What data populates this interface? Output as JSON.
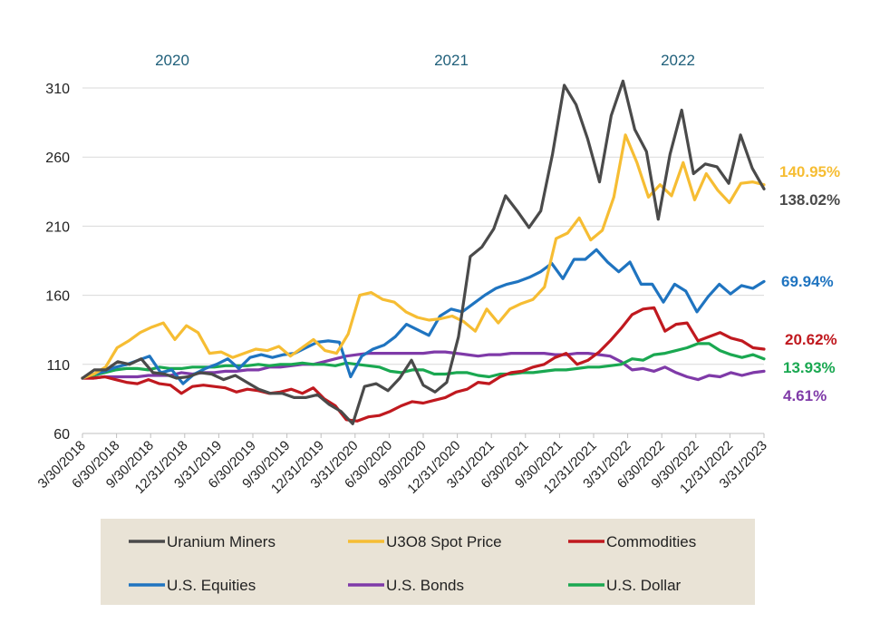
{
  "chart_data": {
    "type": "line",
    "title": "",
    "xlabel": "",
    "ylabel": "",
    "ylim": [
      60,
      320
    ],
    "yticks": [
      60,
      110,
      160,
      210,
      260,
      310
    ],
    "grid": "horizontal",
    "legend_position": "bottom",
    "year_annotations": [
      "2020",
      "2021",
      "2022"
    ],
    "x_tick_labels": [
      "3/30/2018",
      "6/30/2018",
      "9/30/2018",
      "12/31/2018",
      "3/31/2019",
      "6/30/2019",
      "9/30/2019",
      "12/31/2019",
      "3/31/2020",
      "6/30/2020",
      "9/30/2020",
      "12/31/2020",
      "3/31/2021",
      "6/30/2021",
      "9/30/2021",
      "12/31/2021",
      "3/31/2022",
      "6/30/2022",
      "9/30/2022",
      "12/31/2022",
      "3/31/2023"
    ],
    "series": [
      {
        "name": "Uranium Miners",
        "color": "#4a4a4a",
        "end_label": "138.02%",
        "values": [
          100,
          106,
          106,
          112,
          110,
          114,
          104,
          103,
          100,
          101,
          104,
          103,
          99,
          102,
          97,
          92,
          89,
          89,
          86,
          86,
          88,
          81,
          76,
          67,
          94,
          96,
          91,
          100,
          113,
          95,
          90,
          97,
          130,
          188,
          195,
          208,
          232,
          221,
          209,
          221,
          262,
          312,
          298,
          273,
          242,
          290,
          315,
          280,
          264,
          215,
          262,
          294,
          248,
          255,
          253,
          241,
          276,
          252,
          237
        ]
      },
      {
        "name": "U3O8 Spot Price",
        "color": "#f6bd33",
        "end_label": "140.95%",
        "values": [
          100,
          103,
          108,
          122,
          127,
          133,
          137,
          140,
          128,
          138,
          133,
          118,
          119,
          115,
          118,
          121,
          120,
          123,
          116,
          122,
          128,
          120,
          118,
          132,
          160,
          162,
          157,
          155,
          148,
          144,
          142,
          143,
          145,
          141,
          134,
          150,
          140,
          150,
          154,
          157,
          166,
          201,
          205,
          216,
          200,
          207,
          231,
          276,
          256,
          231,
          240,
          232,
          256,
          229,
          248,
          236,
          227,
          241,
          242,
          240
        ]
      },
      {
        "name": "Commodities",
        "color": "#c0191f",
        "end_label": "20.62%",
        "values": [
          100,
          100,
          101,
          99,
          97,
          96,
          99,
          96,
          95,
          89,
          94,
          95,
          94,
          93,
          90,
          92,
          91,
          89,
          90,
          92,
          89,
          93,
          85,
          80,
          70,
          69,
          72,
          73,
          76,
          80,
          83,
          82,
          84,
          86,
          90,
          92,
          97,
          96,
          101,
          104,
          105,
          108,
          110,
          115,
          118,
          110,
          113,
          119,
          127,
          136,
          146,
          150,
          151,
          134,
          139,
          140,
          127,
          130,
          133,
          129,
          127,
          122,
          121
        ]
      },
      {
        "name": "U.S. Equities",
        "color": "#1f74c0",
        "end_label": "69.94%",
        "values": [
          100,
          103,
          105,
          108,
          110,
          113,
          116,
          104,
          106,
          96,
          103,
          107,
          110,
          114,
          107,
          115,
          117,
          115,
          117,
          118,
          122,
          126,
          127,
          126,
          101,
          116,
          121,
          124,
          130,
          139,
          135,
          131,
          145,
          150,
          148,
          154,
          160,
          165,
          168,
          170,
          173,
          177,
          183,
          172,
          186,
          186,
          193,
          184,
          177,
          184,
          168,
          168,
          155,
          168,
          163,
          148,
          159,
          168,
          161,
          167,
          165,
          170
        ]
      },
      {
        "name": "U.S. Bonds",
        "color": "#7f3aa8",
        "end_label": "4.61%",
        "values": [
          100,
          100,
          101,
          101,
          101,
          101,
          102,
          102,
          102,
          104,
          103,
          104,
          104,
          105,
          105,
          106,
          106,
          108,
          108,
          109,
          110,
          110,
          112,
          114,
          116,
          117,
          118,
          118,
          118,
          118,
          118,
          118,
          119,
          119,
          118,
          117,
          116,
          117,
          117,
          118,
          118,
          118,
          118,
          117,
          117,
          118,
          118,
          117,
          116,
          112,
          106,
          107,
          105,
          108,
          104,
          101,
          99,
          102,
          101,
          104,
          102,
          104,
          105
        ]
      },
      {
        "name": "U.S. Dollar",
        "color": "#1aa851",
        "end_label": "13.93%",
        "values": [
          100,
          102,
          104,
          106,
          107,
          107,
          106,
          108,
          107,
          107,
          108,
          108,
          108,
          109,
          109,
          109,
          110,
          109,
          110,
          110,
          111,
          110,
          110,
          109,
          111,
          110,
          109,
          108,
          105,
          104,
          106,
          106,
          103,
          103,
          104,
          104,
          102,
          101,
          103,
          103,
          104,
          104,
          105,
          106,
          106,
          107,
          108,
          108,
          109,
          110,
          114,
          113,
          117,
          118,
          120,
          122,
          125,
          125,
          120,
          117,
          115,
          117,
          114
        ]
      }
    ]
  },
  "legend": {
    "items": [
      "Uranium Miners",
      "U3O8 Spot Price",
      "Commodities",
      "U.S. Equities",
      "U.S. Bonds",
      "U.S. Dollar"
    ]
  }
}
